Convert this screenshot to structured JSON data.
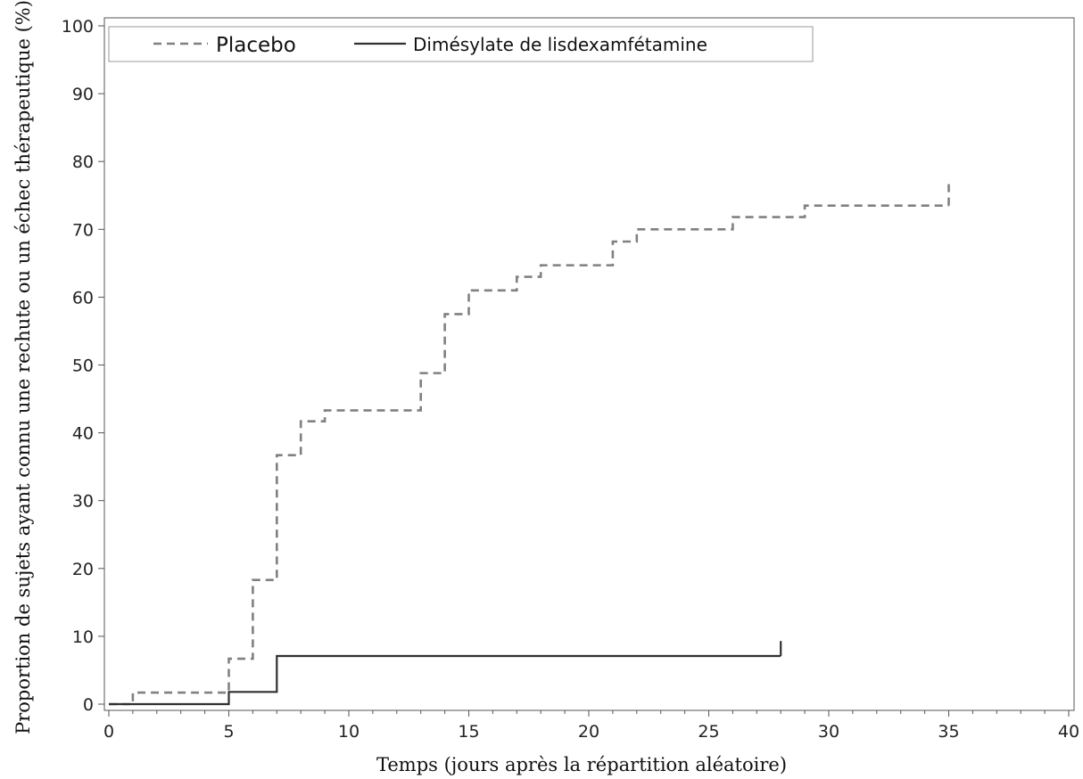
{
  "chart_data": {
    "type": "line",
    "subtype": "step",
    "title": "",
    "xlabel": "Temps (jours après la répartition aléatoire)",
    "ylabel": "Proportion de sujets ayant connu une rechute ou un échec thérapeutique (%)",
    "xlim": [
      0,
      40
    ],
    "ylim": [
      0,
      100
    ],
    "x_ticks": [
      "0",
      "5",
      "10",
      "15",
      "20",
      "25",
      "30",
      "35",
      "40"
    ],
    "y_ticks": [
      "0",
      "10",
      "20",
      "30",
      "40",
      "50",
      "60",
      "70",
      "80",
      "90",
      "100"
    ],
    "grid": false,
    "legend": {
      "placement": "top-left",
      "border": true
    },
    "series": [
      {
        "name": "Placebo",
        "style": "dashed",
        "color": "#808080",
        "x": [
          0,
          1,
          5,
          6,
          7,
          8,
          9,
          13,
          14,
          15,
          17,
          18,
          21,
          22,
          26,
          29,
          35
        ],
        "y": [
          0,
          1.7,
          6.7,
          18.3,
          36.7,
          41.7,
          43.3,
          48.8,
          57.5,
          61.0,
          63.0,
          64.7,
          68.2,
          70.0,
          71.8,
          73.5,
          73.5
        ],
        "censor_x": [
          35
        ],
        "censor_y": [
          77
        ]
      },
      {
        "name": "Dimésylate de lisdexamfétamine",
        "style": "solid",
        "color": "#303030",
        "x": [
          0,
          5,
          7,
          28
        ],
        "y": [
          0,
          1.8,
          7.1,
          7.1
        ],
        "censor_x": [
          28
        ],
        "censor_y": [
          9.3
        ]
      }
    ]
  }
}
